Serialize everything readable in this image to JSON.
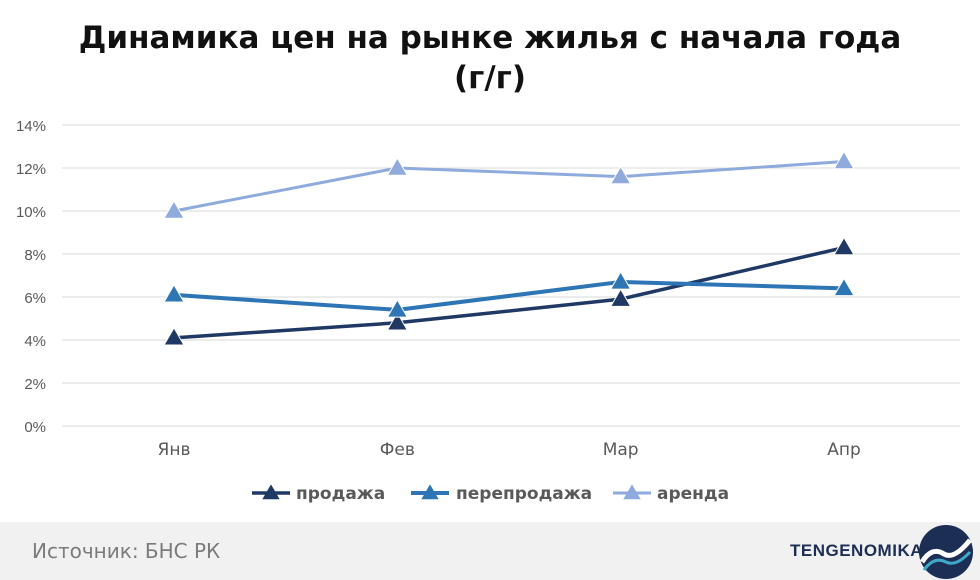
{
  "header": {
    "title_line1": "Динамика цен на рынке жилья с начала года",
    "title_line2": "(г/г)"
  },
  "footer": {
    "source": "Источник: БНС РК",
    "brand": "TENGENOMIKA"
  },
  "colors": {
    "sales": "#1f3864",
    "resales": "#2e75b6",
    "rent": "#8faadc",
    "grid": "#d9d9d9",
    "axis_text": "#595959"
  },
  "chart_data": {
    "type": "line",
    "categories": [
      "Янв",
      "Фев",
      "Мар",
      "Апр"
    ],
    "y_ticks": [
      "0%",
      "2%",
      "4%",
      "6%",
      "8%",
      "10%",
      "12%",
      "14%"
    ],
    "ylim": [
      0,
      14
    ],
    "grid": true,
    "legend_position": "bottom",
    "series": [
      {
        "name": "продажа",
        "values": [
          4.1,
          4.8,
          5.9,
          8.3
        ]
      },
      {
        "name": "перепродажа",
        "values": [
          6.1,
          5.4,
          6.7,
          6.4
        ]
      },
      {
        "name": "аренда",
        "values": [
          10.0,
          12.0,
          11.6,
          12.3
        ]
      }
    ]
  }
}
